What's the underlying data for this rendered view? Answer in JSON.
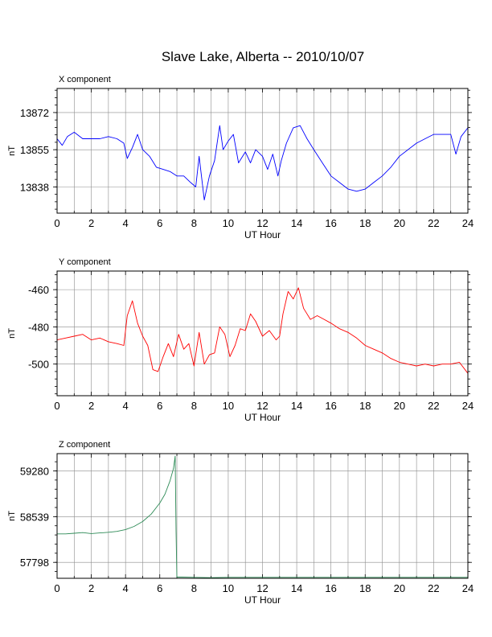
{
  "title": "Slave Lake, Alberta -- 2010/10/07",
  "chart_data": [
    {
      "type": "line",
      "panel_label": "X component",
      "xlabel": "UT Hour",
      "ylabel": "nT",
      "xlim": [
        0,
        24
      ],
      "ylim": [
        13826,
        13883
      ],
      "xticks": [
        0,
        2,
        4,
        6,
        8,
        10,
        12,
        14,
        16,
        18,
        20,
        22,
        24
      ],
      "yticks": [
        13838,
        13855,
        13872
      ],
      "grid": true,
      "color": "#0000ff",
      "x": [
        0,
        0.3,
        0.6,
        1,
        1.5,
        2,
        2.5,
        3,
        3.5,
        3.9,
        4.1,
        4.4,
        4.7,
        5,
        5.4,
        5.8,
        6.2,
        6.6,
        7,
        7.4,
        7.8,
        8.1,
        8.3,
        8.6,
        8.9,
        9.2,
        9.5,
        9.7,
        10,
        10.3,
        10.6,
        11,
        11.3,
        11.6,
        12,
        12.3,
        12.6,
        12.9,
        13.1,
        13.4,
        13.8,
        14.2,
        14.6,
        15,
        15.5,
        16,
        16.5,
        17,
        17.5,
        18,
        18.5,
        19,
        19.5,
        20,
        20.5,
        21,
        21.5,
        22,
        22.5,
        23,
        23.3,
        23.6,
        24
      ],
      "y": [
        13860,
        13857,
        13861,
        13863,
        13860,
        13860,
        13860,
        13861,
        13860,
        13858,
        13851,
        13856,
        13862,
        13855,
        13852,
        13847,
        13846,
        13845,
        13843,
        13843,
        13840,
        13838,
        13852,
        13832,
        13843,
        13850,
        13866,
        13855,
        13859,
        13862,
        13849,
        13854,
        13849,
        13855,
        13852,
        13846,
        13853,
        13843,
        13850,
        13858,
        13865,
        13866,
        13860,
        13855,
        13849,
        13843,
        13840,
        13837,
        13836,
        13837,
        13840,
        13843,
        13847,
        13852,
        13855,
        13858,
        13860,
        13862,
        13862,
        13862,
        13853,
        13861,
        13865
      ]
    },
    {
      "type": "line",
      "panel_label": "Y component",
      "xlabel": "UT Hour",
      "ylabel": "nT",
      "xlim": [
        0,
        24
      ],
      "ylim": [
        -517,
        -450
      ],
      "xticks": [
        0,
        2,
        4,
        6,
        8,
        10,
        12,
        14,
        16,
        18,
        20,
        22,
        24
      ],
      "yticks": [
        -460,
        -480,
        -500
      ],
      "grid": true,
      "color": "#ff0000",
      "x": [
        0,
        0.5,
        1,
        1.5,
        2,
        2.5,
        3,
        3.5,
        3.9,
        4.1,
        4.4,
        4.7,
        5,
        5.3,
        5.6,
        5.9,
        6.2,
        6.5,
        6.8,
        7.1,
        7.4,
        7.7,
        8,
        8.3,
        8.6,
        8.9,
        9.2,
        9.5,
        9.8,
        10.1,
        10.4,
        10.7,
        11,
        11.3,
        11.6,
        12,
        12.4,
        12.8,
        13,
        13.2,
        13.5,
        13.8,
        14.1,
        14.4,
        14.8,
        15.2,
        15.6,
        16,
        16.5,
        17,
        17.5,
        18,
        18.5,
        19,
        19.5,
        20,
        20.5,
        21,
        21.5,
        22,
        22.5,
        23,
        23.5,
        24
      ],
      "y": [
        -487,
        -486,
        -485,
        -484,
        -487,
        -486,
        -488,
        -489,
        -490,
        -474,
        -466,
        -478,
        -485,
        -490,
        -503,
        -504,
        -496,
        -489,
        -496,
        -484,
        -492,
        -489,
        -501,
        -483,
        -500,
        -495,
        -494,
        -480,
        -484,
        -496,
        -490,
        -481,
        -482,
        -473,
        -477,
        -485,
        -482,
        -487,
        -485,
        -473,
        -461,
        -465,
        -459,
        -470,
        -476,
        -474,
        -476,
        -478,
        -481,
        -483,
        -486,
        -490,
        -492,
        -494,
        -497,
        -499,
        -500,
        -501,
        -500,
        -501,
        -500,
        -500,
        -499,
        -505
      ]
    },
    {
      "type": "line",
      "panel_label": "Z component",
      "xlabel": "UT Hour",
      "ylabel": "nT",
      "xlim": [
        0,
        24
      ],
      "ylim": [
        57540,
        59560
      ],
      "xticks": [
        0,
        2,
        4,
        6,
        8,
        10,
        12,
        14,
        16,
        18,
        20,
        22,
        24
      ],
      "yticks": [
        57798,
        58539,
        59280
      ],
      "grid": true,
      "color": "#2e8b57",
      "x": [
        0,
        0.5,
        1,
        1.5,
        2,
        2.5,
        3,
        3.5,
        4,
        4.5,
        5,
        5.5,
        6,
        6.3,
        6.6,
        6.8,
        6.9,
        6.95,
        7,
        7.3,
        8,
        9,
        10,
        12,
        14,
        16,
        18,
        20,
        22,
        24
      ],
      "y": [
        58260,
        58260,
        58270,
        58280,
        58265,
        58275,
        58285,
        58300,
        58330,
        58380,
        58460,
        58580,
        58760,
        58900,
        59120,
        59320,
        59520,
        58300,
        57560,
        57560,
        57555,
        57550,
        57555,
        57555,
        57555,
        57555,
        57555,
        57555,
        57555,
        57555
      ]
    }
  ]
}
